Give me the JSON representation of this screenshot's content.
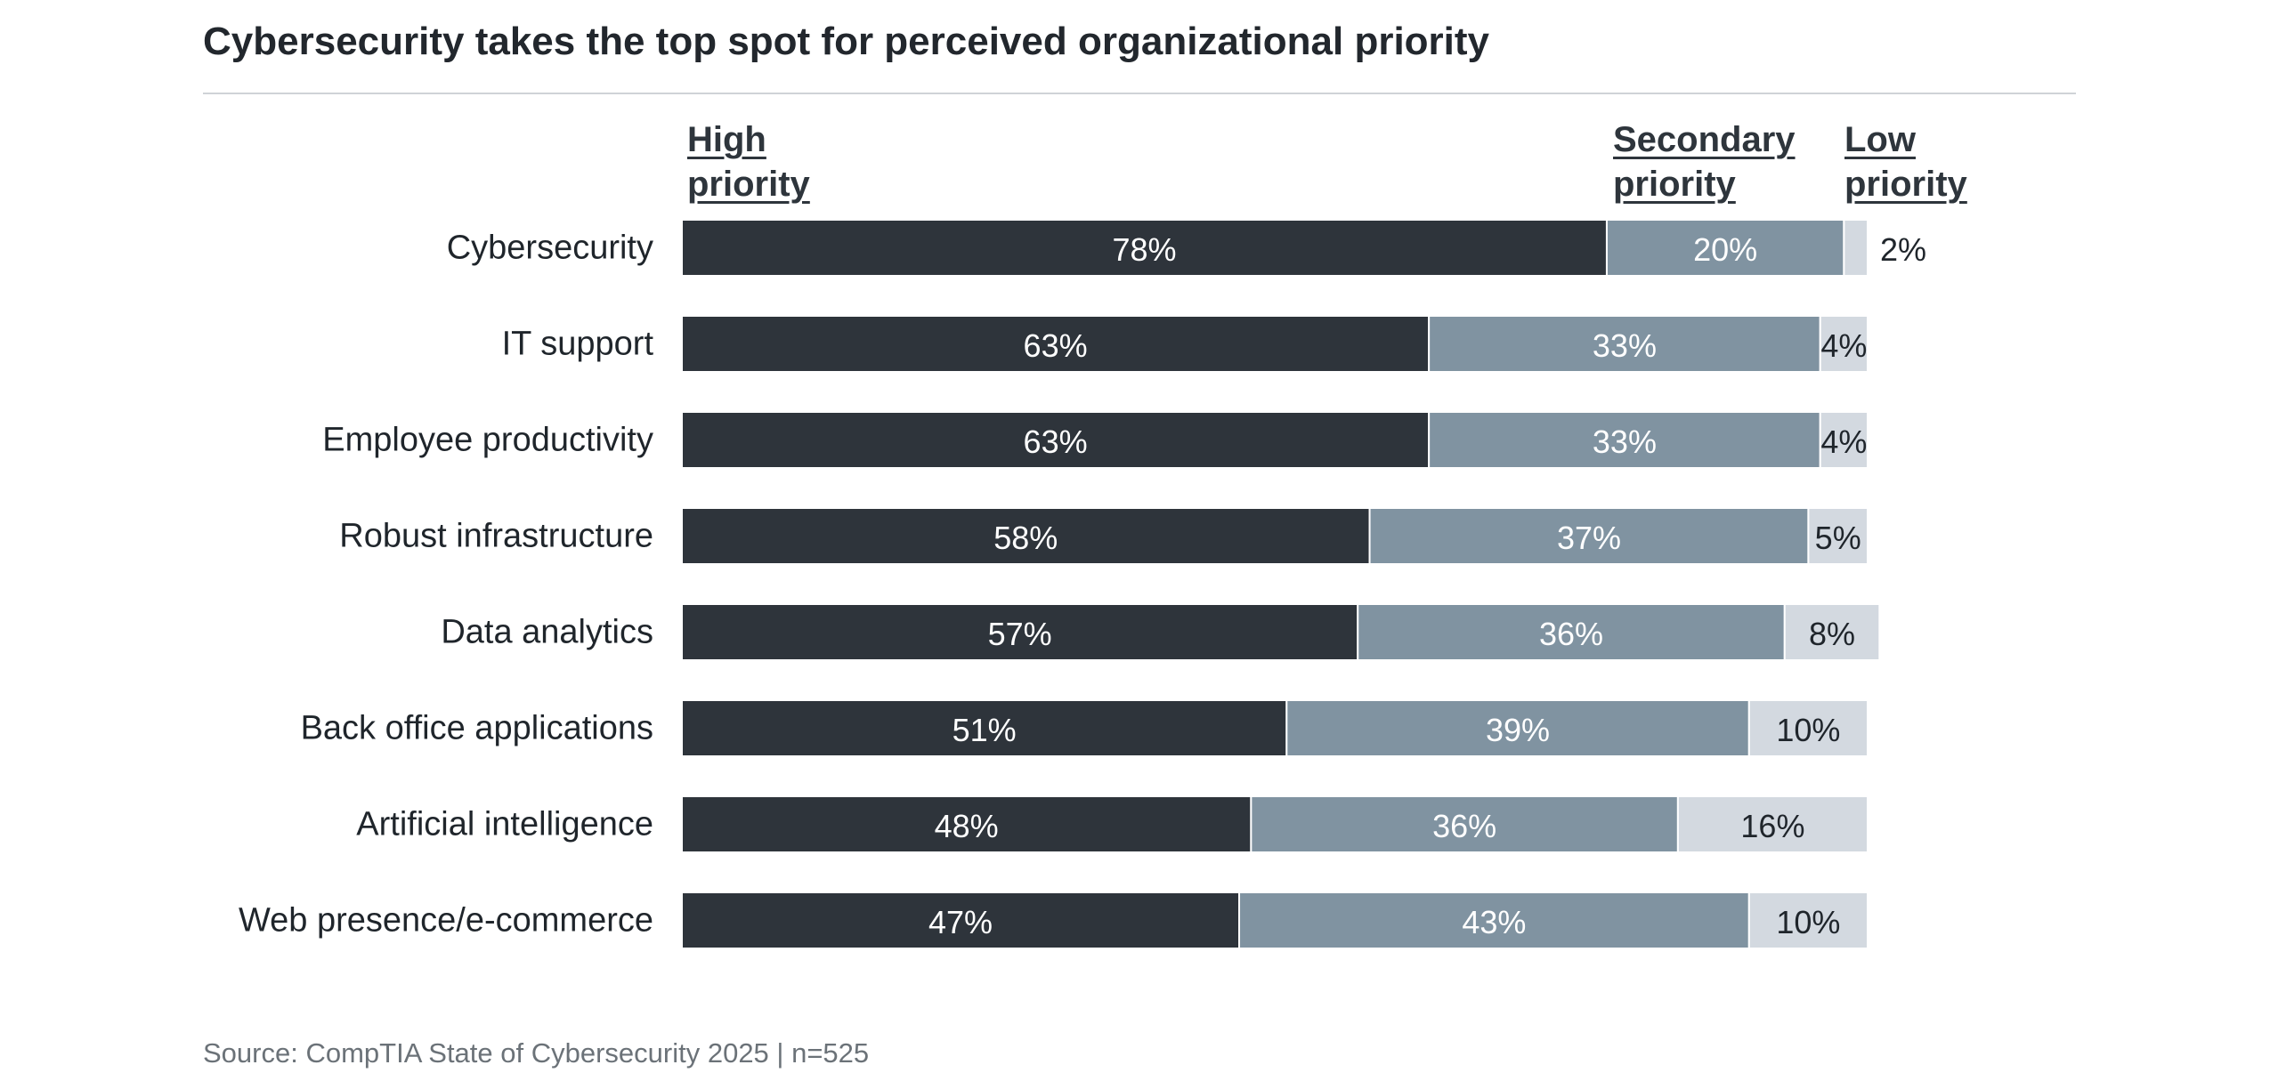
{
  "title": "Cybersecurity takes the top spot for perceived organizational priority",
  "source": "Source: CompTIA State of Cybersecurity 2025 | n=525",
  "colors": {
    "high": "#2e343b",
    "secondary": "#8093a1",
    "low": "#d3d9e0",
    "label_dark": "#ffffff",
    "label_light": "#1f252b"
  },
  "chart_data": {
    "type": "bar",
    "orientation": "horizontal",
    "stacked": true,
    "title": "Cybersecurity takes the top spot for perceived organizational priority",
    "categories": [
      "Cybersecurity",
      "IT support",
      "Employee productivity",
      "Robust infrastructure",
      "Data analytics",
      "Back office applications",
      "Artificial intelligence",
      "Web presence/e-commerce"
    ],
    "series": [
      {
        "name": "High\npriority",
        "values": [
          78,
          63,
          63,
          58,
          57,
          51,
          48,
          47
        ]
      },
      {
        "name": "Secondary\npriority",
        "values": [
          20,
          33,
          33,
          37,
          36,
          39,
          36,
          43
        ]
      },
      {
        "name": "Low\npriority",
        "values": [
          2,
          4,
          4,
          5,
          8,
          10,
          16,
          10
        ]
      }
    ],
    "value_suffix": "%",
    "xlim": [
      0,
      100
    ],
    "legend": "top"
  }
}
